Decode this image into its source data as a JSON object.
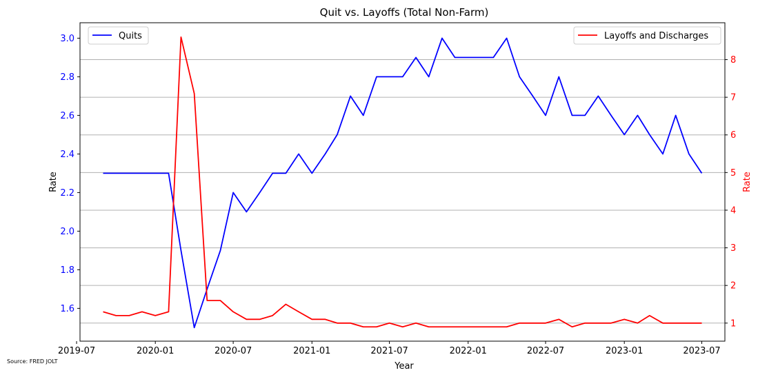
{
  "chart_data": {
    "type": "line",
    "title": "Quit vs. Layoffs (Total Non-Farm)",
    "xlabel": "Year",
    "ylabel_left": "Rate",
    "ylabel_right": "Rate",
    "source_note": "Source: FRED JOLT",
    "x": [
      "2019-09",
      "2019-10",
      "2019-11",
      "2019-12",
      "2020-01",
      "2020-02",
      "2020-03",
      "2020-04",
      "2020-05",
      "2020-06",
      "2020-07",
      "2020-08",
      "2020-09",
      "2020-10",
      "2020-11",
      "2020-12",
      "2021-01",
      "2021-02",
      "2021-03",
      "2021-04",
      "2021-05",
      "2021-06",
      "2021-07",
      "2021-08",
      "2021-09",
      "2021-10",
      "2021-11",
      "2021-12",
      "2022-01",
      "2022-02",
      "2022-03",
      "2022-04",
      "2022-05",
      "2022-06",
      "2022-07",
      "2022-08",
      "2022-09",
      "2022-10",
      "2022-11",
      "2022-12",
      "2023-01",
      "2023-02",
      "2023-03",
      "2023-04",
      "2023-05",
      "2023-06",
      "2023-07"
    ],
    "x_ticks": [
      "2019-07",
      "2020-01",
      "2020-07",
      "2021-01",
      "2021-07",
      "2022-01",
      "2022-07",
      "2023-01",
      "2023-07"
    ],
    "xlim": [
      "2019-07-09",
      "2023-08-24"
    ],
    "series": [
      {
        "name": "Quits",
        "axis": "left",
        "color": "#0000ff",
        "values": [
          2.3,
          2.3,
          2.3,
          2.3,
          2.3,
          2.3,
          1.9,
          1.5,
          1.7,
          1.9,
          2.2,
          2.1,
          2.2,
          2.3,
          2.3,
          2.4,
          2.3,
          2.4,
          2.5,
          2.7,
          2.6,
          2.8,
          2.8,
          2.8,
          2.9,
          2.8,
          3.0,
          2.9,
          2.9,
          2.9,
          2.9,
          3.0,
          2.8,
          2.7,
          2.6,
          2.8,
          2.6,
          2.6,
          2.7,
          2.6,
          2.5,
          2.6,
          2.5,
          2.4,
          2.6,
          2.4,
          2.3
        ]
      },
      {
        "name": "Layoffs and Discharges",
        "axis": "right",
        "color": "#ff0000",
        "values": [
          1.3,
          1.2,
          1.2,
          1.3,
          1.2,
          1.3,
          8.6,
          7.1,
          1.6,
          1.6,
          1.3,
          1.1,
          1.1,
          1.2,
          1.5,
          1.3,
          1.1,
          1.1,
          1.0,
          1.0,
          0.9,
          0.9,
          1.0,
          0.9,
          1.0,
          0.9,
          0.9,
          0.9,
          0.9,
          0.9,
          0.9,
          0.9,
          1.0,
          1.0,
          1.0,
          1.1,
          0.9,
          1.0,
          1.0,
          1.0,
          1.1,
          1.0,
          1.2,
          1.0,
          1.0,
          1.0,
          1.0
        ]
      }
    ],
    "ylim_left": [
      1.43,
      3.08
    ],
    "yticks_left": [
      "1.6",
      "1.8",
      "2.0",
      "2.2",
      "2.4",
      "2.6",
      "2.8",
      "3.0"
    ],
    "ylim_right": [
      0.52,
      8.98
    ],
    "yticks_right": [
      "1",
      "2",
      "3",
      "4",
      "5",
      "6",
      "7",
      "8"
    ],
    "grid": "horizontal lines at right-axis ticks",
    "legend_left_placement": "top-left",
    "legend_right_placement": "top-right",
    "colors": {
      "left_axis": "#0000ff",
      "right_axis": "#ff0000",
      "grid": "#b0b0b0"
    }
  }
}
